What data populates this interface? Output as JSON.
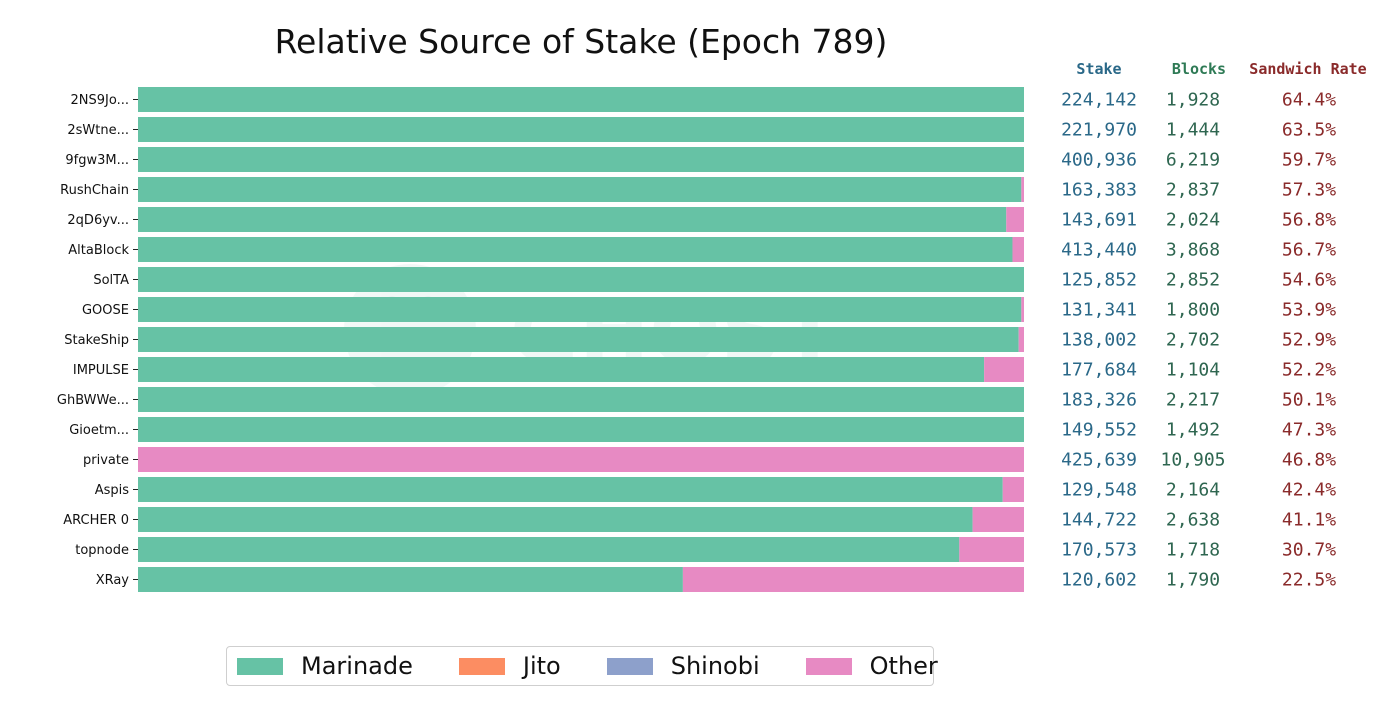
{
  "chart_data": {
    "type": "bar",
    "orientation": "horizontal",
    "stacked": true,
    "normalized": true,
    "title": "Relative Source of Stake (Epoch 789)",
    "categories": [
      "2NS9Jo...",
      "2sWtne...",
      "9fgw3M...",
      "RushChain",
      "2qD6yv...",
      "AltaBlock",
      "SolTA",
      "GOOSE",
      "StakeShip",
      "IMPULSE",
      "GhBWWe...",
      "Gioetm...",
      "private",
      "Aspis",
      "ARCHER 0",
      "topnode",
      "XRay"
    ],
    "series": [
      {
        "name": "Marinade",
        "color": "#66c2a5",
        "values": [
          1.0,
          1.0,
          1.0,
          0.997,
          0.98,
          0.987,
          1.0,
          0.997,
          0.994,
          0.955,
          1.0,
          1.0,
          0.0,
          0.976,
          0.942,
          0.927,
          0.615
        ]
      },
      {
        "name": "Jito",
        "color": "#fc8d62",
        "values": [
          0,
          0,
          0,
          0,
          0,
          0,
          0,
          0,
          0,
          0,
          0,
          0,
          0,
          0,
          0,
          0,
          0
        ]
      },
      {
        "name": "Shinobi",
        "color": "#8da0cb",
        "values": [
          0,
          0,
          0,
          0,
          0,
          0,
          0,
          0,
          0,
          0,
          0,
          0,
          0,
          0,
          0,
          0,
          0
        ]
      },
      {
        "name": "Other",
        "color": "#e78ac3",
        "values": [
          0.0,
          0.0,
          0.0,
          0.003,
          0.02,
          0.013,
          0.0,
          0.003,
          0.006,
          0.045,
          0.0,
          0.0,
          1.0,
          0.024,
          0.058,
          0.073,
          0.385
        ]
      }
    ],
    "xlim": [
      0,
      1
    ],
    "grid": false,
    "legend_position": "bottom-center",
    "table": {
      "headers": [
        "Stake",
        "Blocks",
        "Sandwich Rate"
      ],
      "header_colors": [
        "#2a6888",
        "#2e7a55",
        "#8a2a2a"
      ],
      "value_colors": [
        "#2a6888",
        "#2e6650",
        "#8a2a2a"
      ],
      "rows": [
        [
          "224,142",
          "1,928",
          "64.4%"
        ],
        [
          "221,970",
          "1,444",
          "63.5%"
        ],
        [
          "400,936",
          "6,219",
          "59.7%"
        ],
        [
          "163,383",
          "2,837",
          "57.3%"
        ],
        [
          "143,691",
          "2,024",
          "56.8%"
        ],
        [
          "413,440",
          "3,868",
          "56.7%"
        ],
        [
          "125,852",
          "2,852",
          "54.6%"
        ],
        [
          "131,341",
          "1,800",
          "53.9%"
        ],
        [
          "138,002",
          "2,702",
          "52.9%"
        ],
        [
          "177,684",
          "1,104",
          "52.2%"
        ],
        [
          "183,326",
          "2,217",
          "50.1%"
        ],
        [
          "149,552",
          "1,492",
          "47.3%"
        ],
        [
          "425,639",
          "10,905",
          "46.8%"
        ],
        [
          "129,548",
          "2,164",
          "42.4%"
        ],
        [
          "144,722",
          "2,638",
          "41.1%"
        ],
        [
          "170,573",
          "1,718",
          "30.7%"
        ],
        [
          "120,602",
          "1,790",
          "22.5%"
        ]
      ]
    },
    "watermark": "GHOST"
  }
}
